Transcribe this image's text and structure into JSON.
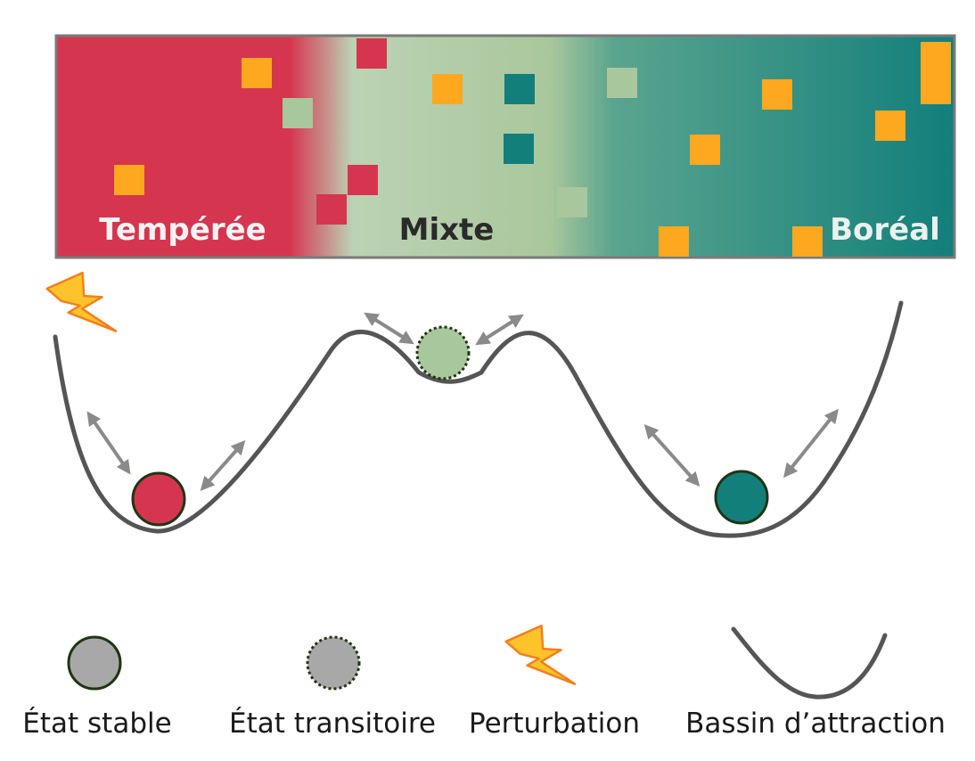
{
  "forest_band": {
    "zones": [
      {
        "id": "temperate",
        "label": "Tempérée",
        "color": "#d6354f",
        "label_color": "#f3f3f3"
      },
      {
        "id": "mixed",
        "label": "Mixte",
        "color": "#a9c79c",
        "label_color": "#2a2a2a"
      },
      {
        "id": "boreal",
        "label": "Boréal",
        "color": "#127f7b",
        "label_color": "#eaf1ee"
      }
    ],
    "patch_colors": {
      "orange": "#fda81f",
      "red": "#d6354f",
      "light_green": "#a9c79c",
      "teal": "#127f7b"
    }
  },
  "landscape": {
    "curve_color": "#555555",
    "arrow_color": "#8a8a8a",
    "balls": [
      {
        "state": "stable",
        "zone": "temperate",
        "fill": "#d6354f",
        "stroke": "#1f3514",
        "border": "solid"
      },
      {
        "state": "transitoire",
        "zone": "mixed",
        "fill": "#a9c79c",
        "stroke": "#1f3514",
        "border": "dotted"
      },
      {
        "state": "stable",
        "zone": "boreal",
        "fill": "#127f7b",
        "stroke": "#1f3514",
        "border": "solid"
      }
    ],
    "perturbation_icon": "lightning-icon",
    "perturbation_colors": {
      "fill": "#fdc32a",
      "stroke": "#f47f1d"
    }
  },
  "legend": [
    {
      "label": "État stable",
      "icon": "stable-state-icon"
    },
    {
      "label": "État transitoire",
      "icon": "transient-state-icon"
    },
    {
      "label": "Perturbation",
      "icon": "lightning-icon"
    },
    {
      "label": "Bassin d’attraction",
      "icon": "basin-icon"
    }
  ]
}
